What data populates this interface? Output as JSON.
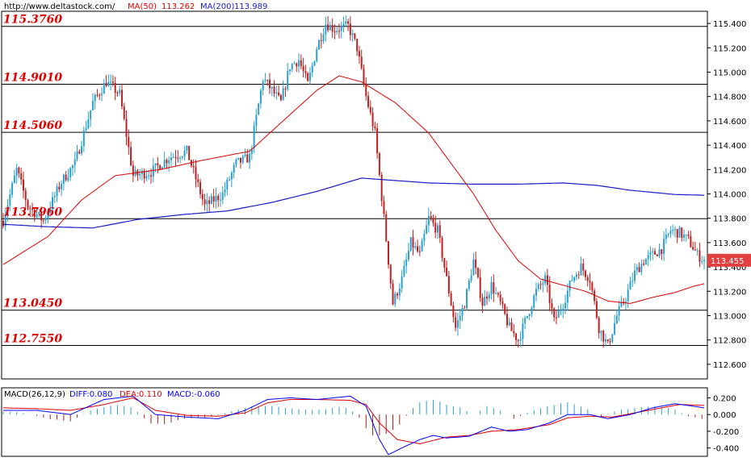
{
  "header": {
    "site": "http://www.deltastock.com/",
    "ma50_label": "MA(50)",
    "ma50_value": "113.262",
    "ma200_label": "MA(200)",
    "ma200_value": "113.989",
    "ma50_color": "#e00000",
    "ma200_color": "#1a1ac8"
  },
  "macd_header": {
    "label": "MACD(26,12,9)",
    "diff_label": "DIFF:0.080",
    "dea_label": "DEA:0.110",
    "macd_label": "MACD:-0.060",
    "diff_color": "#0000ff",
    "dea_color": "#e00000",
    "macd_color": "#0000ff"
  },
  "last_price": {
    "value": "113.455",
    "color": "#e04040"
  },
  "chart_data": [
    {
      "type": "candlestick",
      "ylim": [
        112.48,
        115.5
      ],
      "yticks": [
        "115.400",
        "115.200",
        "115.000",
        "114.800",
        "114.600",
        "114.400",
        "114.200",
        "114.000",
        "113.800",
        "113.600",
        "113.400",
        "113.200",
        "113.000",
        "112.800",
        "112.600"
      ],
      "up_color": "#2aa0d0",
      "down_color": "#c02020",
      "levels": [
        {
          "value": 115.376,
          "label": "115.3760"
        },
        {
          "value": 114.901,
          "label": "114.9010"
        },
        {
          "value": 114.506,
          "label": "114.5060"
        },
        {
          "value": 113.796,
          "label": "113.7960"
        },
        {
          "value": 113.045,
          "label": "113.0450"
        },
        {
          "value": 112.755,
          "label": "112.7550"
        }
      ],
      "path": [
        [
          0,
          113.78
        ],
        [
          6,
          114.2
        ],
        [
          11,
          113.9
        ],
        [
          18,
          113.78
        ],
        [
          26,
          114.1
        ],
        [
          32,
          114.25
        ],
        [
          40,
          114.75
        ],
        [
          46,
          114.92
        ],
        [
          52,
          114.82
        ],
        [
          58,
          114.15
        ],
        [
          66,
          114.18
        ],
        [
          74,
          114.3
        ],
        [
          82,
          114.35
        ],
        [
          90,
          113.9
        ],
        [
          98,
          114.0
        ],
        [
          104,
          114.25
        ],
        [
          110,
          114.3
        ],
        [
          116,
          114.95
        ],
        [
          120,
          114.85
        ],
        [
          124,
          114.75
        ],
        [
          128,
          115.05
        ],
        [
          132,
          115.1
        ],
        [
          136,
          114.9
        ],
        [
          140,
          115.2
        ],
        [
          144,
          115.4
        ],
        [
          148,
          115.35
        ],
        [
          154,
          115.38
        ],
        [
          158,
          115.2
        ],
        [
          162,
          114.8
        ],
        [
          166,
          114.5
        ],
        [
          170,
          113.8
        ],
        [
          174,
          113.1
        ],
        [
          178,
          113.3
        ],
        [
          182,
          113.6
        ],
        [
          186,
          113.5
        ],
        [
          190,
          113.8
        ],
        [
          194,
          113.7
        ],
        [
          198,
          113.3
        ],
        [
          202,
          112.9
        ],
        [
          206,
          113.1
        ],
        [
          210,
          113.45
        ],
        [
          214,
          113.1
        ],
        [
          218,
          113.25
        ],
        [
          222,
          113.1
        ],
        [
          226,
          112.9
        ],
        [
          230,
          112.8
        ],
        [
          234,
          113.0
        ],
        [
          238,
          113.2
        ],
        [
          242,
          113.3
        ],
        [
          246,
          112.95
        ],
        [
          250,
          113.1
        ],
        [
          254,
          113.3
        ],
        [
          258,
          113.4
        ],
        [
          262,
          113.3
        ],
        [
          266,
          112.9
        ],
        [
          270,
          112.75
        ],
        [
          274,
          113.0
        ],
        [
          278,
          113.15
        ],
        [
          282,
          113.35
        ],
        [
          286,
          113.45
        ],
        [
          290,
          113.5
        ],
        [
          294,
          113.55
        ],
        [
          298,
          113.7
        ],
        [
          302,
          113.68
        ],
        [
          306,
          113.62
        ],
        [
          310,
          113.5
        ],
        [
          313,
          113.455
        ]
      ],
      "ma50": [
        [
          0,
          113.42
        ],
        [
          20,
          113.65
        ],
        [
          35,
          113.95
        ],
        [
          50,
          114.15
        ],
        [
          70,
          114.2
        ],
        [
          90,
          114.28
        ],
        [
          110,
          114.35
        ],
        [
          125,
          114.6
        ],
        [
          140,
          114.85
        ],
        [
          150,
          114.97
        ],
        [
          160,
          114.92
        ],
        [
          175,
          114.75
        ],
        [
          190,
          114.5
        ],
        [
          200,
          114.25
        ],
        [
          210,
          114.0
        ],
        [
          220,
          113.7
        ],
        [
          230,
          113.45
        ],
        [
          240,
          113.3
        ],
        [
          250,
          113.25
        ],
        [
          260,
          113.2
        ],
        [
          270,
          113.12
        ],
        [
          280,
          113.1
        ],
        [
          290,
          113.15
        ],
        [
          300,
          113.19
        ],
        [
          308,
          113.24
        ],
        [
          313,
          113.262
        ]
      ],
      "ma200": [
        [
          0,
          113.75
        ],
        [
          20,
          113.73
        ],
        [
          40,
          113.72
        ],
        [
          60,
          113.79
        ],
        [
          80,
          113.83
        ],
        [
          100,
          113.86
        ],
        [
          120,
          113.93
        ],
        [
          140,
          114.02
        ],
        [
          160,
          114.13
        ],
        [
          175,
          114.11
        ],
        [
          190,
          114.09
        ],
        [
          210,
          114.08
        ],
        [
          230,
          114.08
        ],
        [
          250,
          114.09
        ],
        [
          265,
          114.07
        ],
        [
          280,
          114.03
        ],
        [
          300,
          113.995
        ],
        [
          313,
          113.989
        ]
      ]
    },
    {
      "type": "macd",
      "ylim": [
        -0.5,
        0.32
      ],
      "yticks": [
        "0.200",
        "0.000",
        "-0.200",
        "-0.400"
      ],
      "diff": [
        [
          0,
          0.05
        ],
        [
          15,
          0.05
        ],
        [
          30,
          0.0
        ],
        [
          45,
          0.18
        ],
        [
          58,
          0.22
        ],
        [
          68,
          0.0
        ],
        [
          82,
          -0.03
        ],
        [
          96,
          -0.05
        ],
        [
          108,
          0.05
        ],
        [
          118,
          0.18
        ],
        [
          128,
          0.2
        ],
        [
          140,
          0.18
        ],
        [
          155,
          0.22
        ],
        [
          162,
          0.1
        ],
        [
          168,
          -0.3
        ],
        [
          172,
          -0.48
        ],
        [
          178,
          -0.4
        ],
        [
          186,
          -0.3
        ],
        [
          192,
          -0.25
        ],
        [
          198,
          -0.28
        ],
        [
          208,
          -0.26
        ],
        [
          218,
          -0.15
        ],
        [
          226,
          -0.2
        ],
        [
          234,
          -0.18
        ],
        [
          244,
          -0.1
        ],
        [
          252,
          0.0
        ],
        [
          262,
          0.0
        ],
        [
          270,
          -0.05
        ],
        [
          280,
          0.0
        ],
        [
          290,
          0.08
        ],
        [
          300,
          0.13
        ],
        [
          308,
          0.1
        ],
        [
          313,
          0.08
        ]
      ],
      "dea": [
        [
          0,
          0.08
        ],
        [
          15,
          0.07
        ],
        [
          30,
          0.05
        ],
        [
          45,
          0.12
        ],
        [
          58,
          0.2
        ],
        [
          68,
          0.05
        ],
        [
          82,
          -0.01
        ],
        [
          96,
          -0.02
        ],
        [
          108,
          0.02
        ],
        [
          118,
          0.14
        ],
        [
          128,
          0.18
        ],
        [
          140,
          0.18
        ],
        [
          155,
          0.17
        ],
        [
          162,
          0.12
        ],
        [
          168,
          -0.1
        ],
        [
          176,
          -0.3
        ],
        [
          186,
          -0.35
        ],
        [
          198,
          -0.27
        ],
        [
          208,
          -0.25
        ],
        [
          218,
          -0.2
        ],
        [
          230,
          -0.18
        ],
        [
          244,
          -0.12
        ],
        [
          252,
          -0.04
        ],
        [
          262,
          -0.02
        ],
        [
          272,
          -0.03
        ],
        [
          282,
          0.02
        ],
        [
          292,
          0.07
        ],
        [
          302,
          0.12
        ],
        [
          313,
          0.11
        ]
      ],
      "hist": [
        [
          0,
          0.03
        ],
        [
          10,
          0.02
        ],
        [
          20,
          -0.05
        ],
        [
          30,
          -0.08
        ],
        [
          40,
          0.06
        ],
        [
          50,
          0.12
        ],
        [
          58,
          0.08
        ],
        [
          65,
          -0.1
        ],
        [
          72,
          -0.12
        ],
        [
          80,
          -0.05
        ],
        [
          90,
          -0.04
        ],
        [
          100,
          0.02
        ],
        [
          110,
          0.1
        ],
        [
          120,
          0.1
        ],
        [
          128,
          0.08
        ],
        [
          136,
          0.05
        ],
        [
          144,
          0.06
        ],
        [
          152,
          0.1
        ],
        [
          158,
          0.0
        ],
        [
          164,
          -0.25
        ],
        [
          170,
          -0.25
        ],
        [
          176,
          -0.15
        ],
        [
          182,
          0.05
        ],
        [
          186,
          0.15
        ],
        [
          192,
          0.18
        ],
        [
          198,
          0.12
        ],
        [
          204,
          0.08
        ],
        [
          210,
          0.0
        ],
        [
          216,
          0.1
        ],
        [
          222,
          0.05
        ],
        [
          228,
          -0.05
        ],
        [
          236,
          0.05
        ],
        [
          244,
          0.1
        ],
        [
          252,
          0.15
        ],
        [
          260,
          0.08
        ],
        [
          266,
          -0.04
        ],
        [
          274,
          0.05
        ],
        [
          282,
          0.08
        ],
        [
          290,
          0.1
        ],
        [
          298,
          0.08
        ],
        [
          306,
          -0.02
        ],
        [
          313,
          -0.06
        ]
      ]
    }
  ]
}
